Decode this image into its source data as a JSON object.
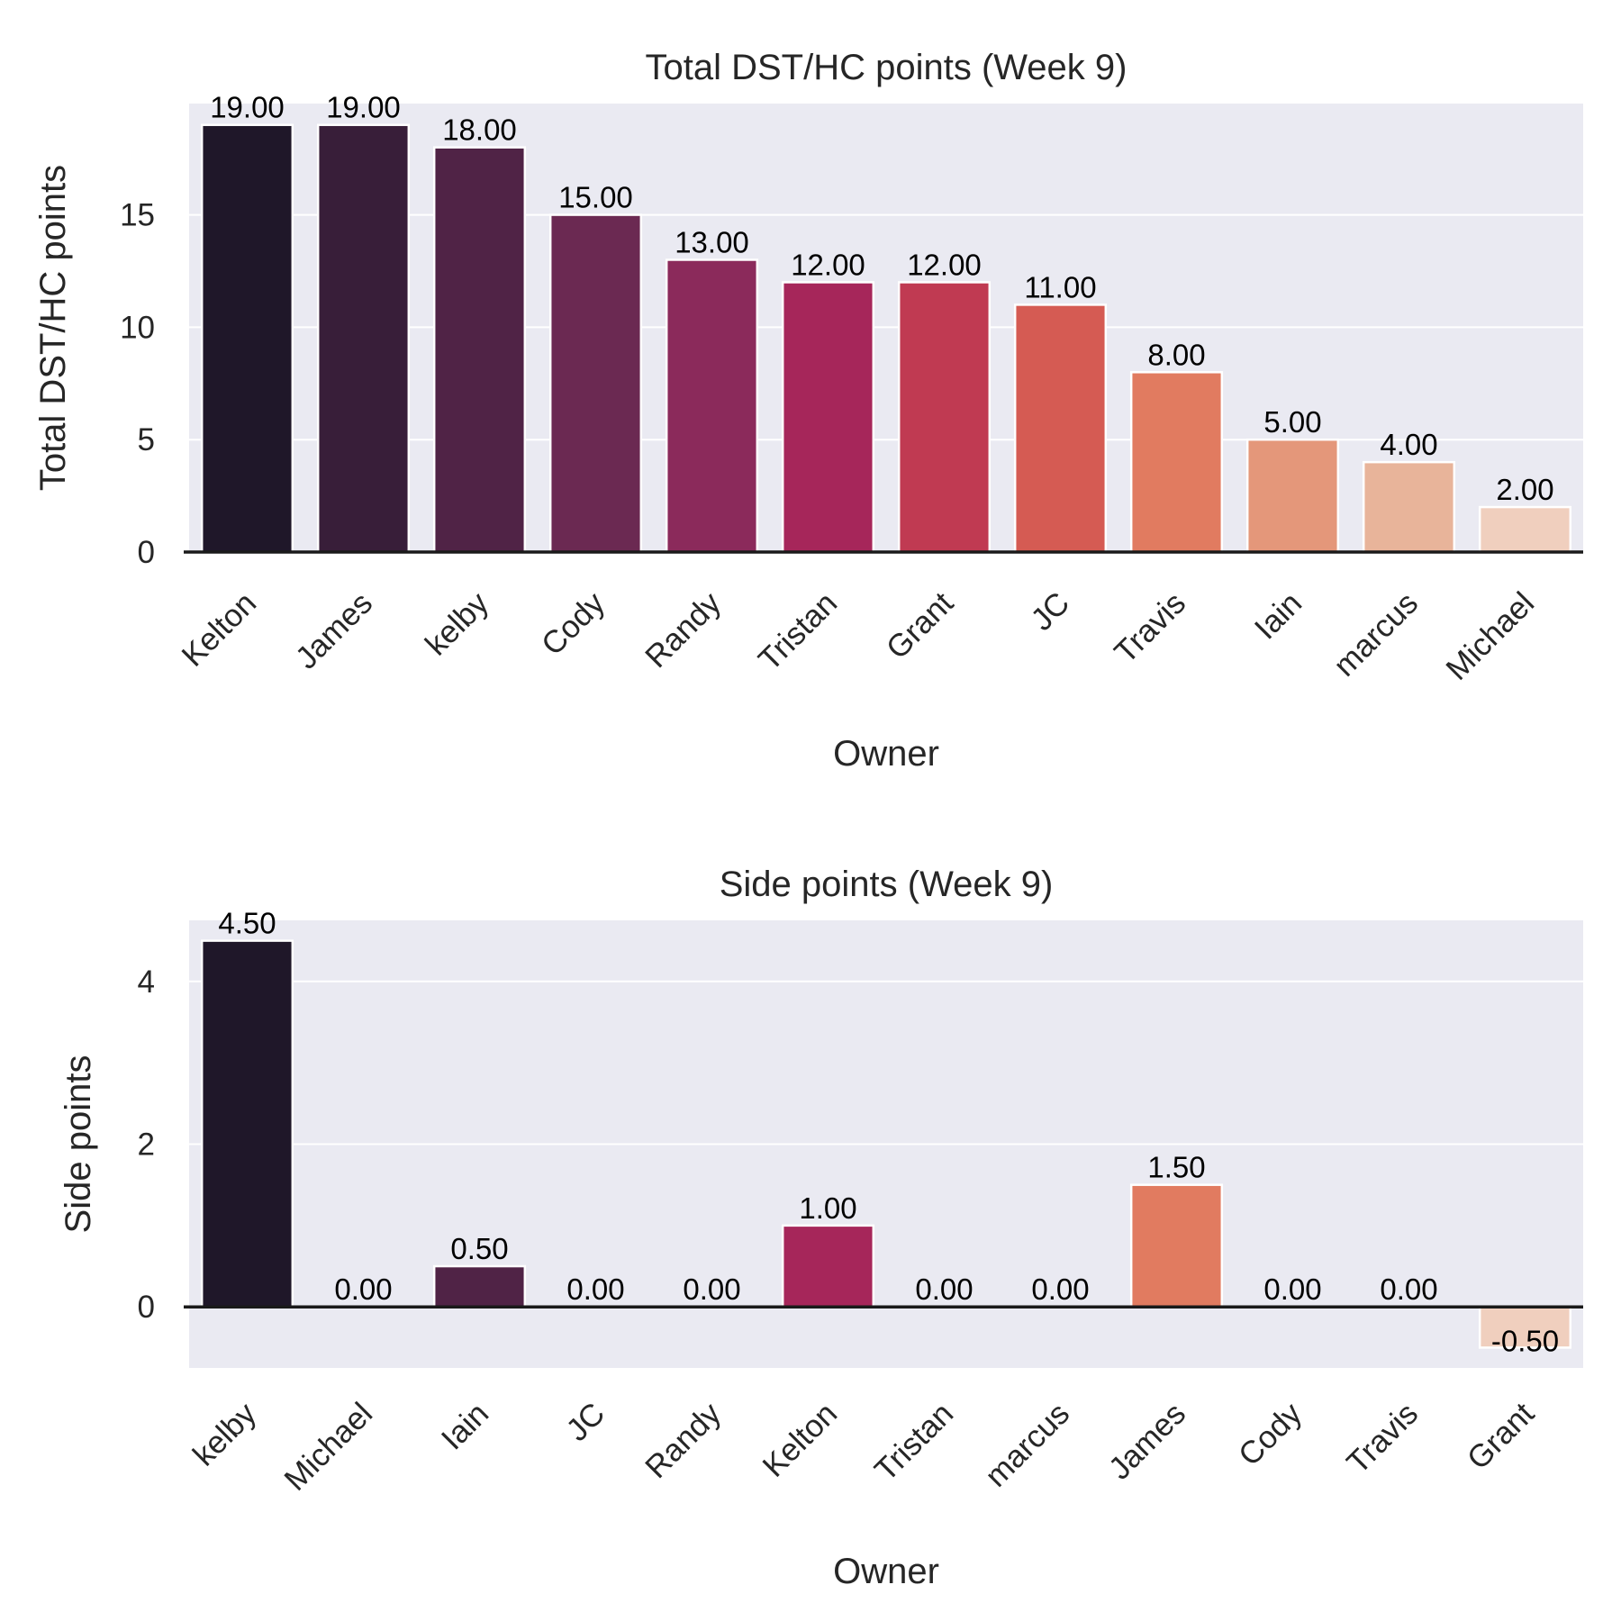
{
  "chart_data": [
    {
      "type": "bar",
      "title": "Total DST/HC points (Week 9)",
      "xlabel": "Owner",
      "ylabel": "Total DST/HC points",
      "categories": [
        "Kelton",
        "James",
        "kelby",
        "Cody",
        "Randy",
        "Tristan",
        "Grant",
        "JC",
        "Travis",
        "Iain",
        "marcus",
        "Michael"
      ],
      "values": [
        19,
        19,
        18,
        15,
        13,
        12,
        12,
        11,
        8,
        5,
        4,
        2
      ],
      "value_labels": [
        "19.00",
        "19.00",
        "18.00",
        "15.00",
        "13.00",
        "12.00",
        "12.00",
        "11.00",
        "8.00",
        "5.00",
        "4.00",
        "2.00"
      ],
      "colors": [
        "#1f1729",
        "#381e39",
        "#502346",
        "#6b2952",
        "#8b2a5b",
        "#a6265a",
        "#c03a52",
        "#d55b53",
        "#e17b60",
        "#e4977a",
        "#e8b49a",
        "#f0cfbe"
      ],
      "ylim": [
        0,
        19.95
      ],
      "yticks": [
        0,
        5,
        10,
        15
      ],
      "ytick_labels": [
        "0",
        "5",
        "10",
        "15"
      ],
      "grid": true
    },
    {
      "type": "bar",
      "title": "Side points (Week 9)",
      "xlabel": "Owner",
      "ylabel": "Side points",
      "categories": [
        "kelby",
        "Michael",
        "Iain",
        "JC",
        "Randy",
        "Kelton",
        "Tristan",
        "marcus",
        "James",
        "Cody",
        "Travis",
        "Grant"
      ],
      "values": [
        4.5,
        0,
        0.5,
        0,
        0,
        1.0,
        0,
        0,
        1.5,
        0,
        0,
        -0.5
      ],
      "value_labels": [
        "4.50",
        "0.00",
        "0.50",
        "0.00",
        "0.00",
        "1.00",
        "0.00",
        "0.00",
        "1.50",
        "0.00",
        "0.00",
        "-0.50"
      ],
      "colors": [
        "#1f1729",
        "#381e39",
        "#502346",
        "#6b2952",
        "#8b2a5b",
        "#a6265a",
        "#c03a52",
        "#d55b53",
        "#e17b60",
        "#e4977a",
        "#e8b49a",
        "#f0cfbe"
      ],
      "ylim": [
        -0.75,
        4.75
      ],
      "yticks": [
        0,
        2,
        4
      ],
      "ytick_labels": [
        "0",
        "2",
        "4"
      ],
      "grid": true
    }
  ]
}
